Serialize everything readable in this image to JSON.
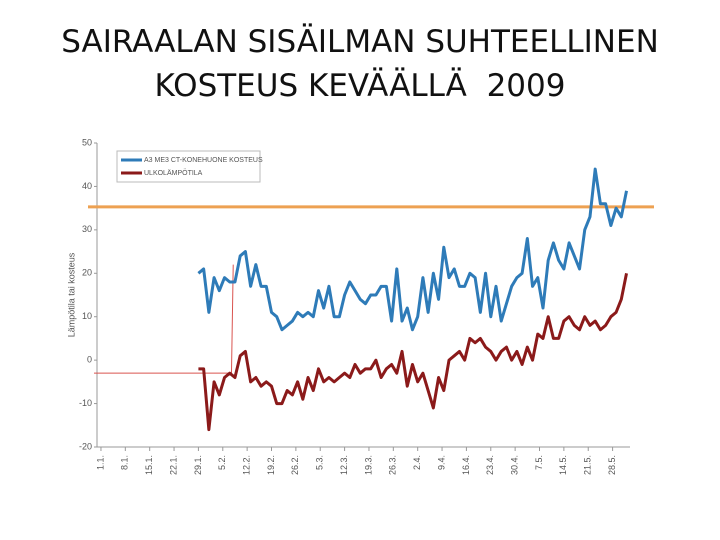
{
  "chart_data": {
    "type": "line",
    "title": [
      "SAIRAALAN SISÄILMAN SUHTEELLINEN",
      "KOSTEUS KEVÄÄLLÄ  2009"
    ],
    "ylabel": "Lämpötila tai kosteus",
    "xlim": [
      -1,
      153
    ],
    "ylim": [
      -20,
      50
    ],
    "yticks": [
      -20,
      -10,
      0,
      10,
      20,
      30,
      40,
      50
    ],
    "xticks": [
      {
        "value": 1,
        "label": "1.1."
      },
      {
        "value": 8,
        "label": "8.1."
      },
      {
        "value": 15,
        "label": "15.1."
      },
      {
        "value": 22,
        "label": "22.1."
      },
      {
        "value": 29,
        "label": "29.1."
      },
      {
        "value": 36,
        "label": "5.2."
      },
      {
        "value": 43,
        "label": "12.2."
      },
      {
        "value": 50,
        "label": "19.2."
      },
      {
        "value": 57,
        "label": "26.2."
      },
      {
        "value": 64,
        "label": "5.3."
      },
      {
        "value": 71,
        "label": "12.3."
      },
      {
        "value": 78,
        "label": "19.3."
      },
      {
        "value": 85,
        "label": "26.3."
      },
      {
        "value": 92,
        "label": "2.4."
      },
      {
        "value": 99,
        "label": "9.4."
      },
      {
        "value": 106,
        "label": "16.4."
      },
      {
        "value": 113,
        "label": "23.4."
      },
      {
        "value": 120,
        "label": "30.4."
      },
      {
        "value": 127,
        "label": "7.5."
      },
      {
        "value": 134,
        "label": "14.5."
      },
      {
        "value": 141,
        "label": "21.5."
      },
      {
        "value": 148,
        "label": "28.5."
      }
    ],
    "x": [
      29,
      30.5,
      32,
      33.5,
      35,
      36.5,
      38,
      39.5,
      41,
      42.5,
      44,
      45.5,
      47,
      48.5,
      50,
      51.5,
      53,
      54.5,
      56,
      57.5,
      59,
      60.5,
      62,
      63.5,
      65,
      66.5,
      68,
      69.5,
      71,
      72.5,
      74,
      75.5,
      77,
      78.5,
      80,
      81.5,
      83,
      84.5,
      86,
      87.5,
      89,
      90.5,
      92,
      93.5,
      95,
      96.5,
      98,
      99.5,
      101,
      102.5,
      104,
      105.5,
      107,
      108.5,
      110,
      111.5,
      113,
      114.5,
      116,
      117.5,
      119,
      120.5,
      122,
      123.5,
      125,
      126.5,
      128,
      129.5,
      131,
      132.5,
      134,
      135.5,
      137,
      138.5,
      140,
      141.5,
      143,
      144.5,
      146,
      147.5,
      149,
      150.5,
      152
    ],
    "series": [
      {
        "name": "A3 ME3 CT-KONEHUONE KOSTEUS",
        "color": "#2e7bb8",
        "values": [
          20,
          21,
          11,
          19,
          16,
          19,
          18,
          18,
          24,
          25,
          17,
          22,
          17,
          17,
          11,
          10,
          7,
          8,
          9,
          11,
          10,
          11,
          10,
          16,
          12,
          17,
          10,
          10,
          15,
          18,
          16,
          14,
          13,
          15,
          15,
          17,
          17,
          9,
          21,
          9,
          12,
          7,
          10,
          19,
          11,
          20,
          14,
          26,
          19,
          21,
          17,
          17,
          20,
          19,
          11,
          20,
          10,
          17,
          9,
          13,
          17,
          19,
          20,
          28,
          17,
          19,
          12,
          23,
          27,
          23,
          21,
          27,
          24,
          21,
          30,
          33,
          44,
          36,
          36,
          31,
          35,
          33,
          39
        ]
      },
      {
        "name": "ULKOLÄMPÖTILA",
        "color": "#8b1a1a",
        "values": [
          -2,
          -2,
          -16,
          -5,
          -8,
          -4,
          -3,
          -4,
          1,
          2,
          -5,
          -4,
          -6,
          -5,
          -6,
          -10,
          -10,
          -7,
          -8,
          -5,
          -9,
          -4,
          -7,
          -2,
          -5,
          -4,
          -5,
          -4,
          -3,
          -4,
          -1,
          -3,
          -2,
          -2,
          0,
          -4,
          -2,
          -1,
          -3,
          2,
          -6,
          -1,
          -5,
          -3,
          -7,
          -11,
          -4,
          -7,
          0,
          1,
          2,
          0,
          5,
          4,
          5,
          3,
          2,
          0,
          2,
          3,
          0,
          2,
          -1,
          3,
          0,
          6,
          5,
          10,
          5,
          5,
          9,
          10,
          8,
          7,
          10,
          8,
          9,
          7,
          8,
          10,
          11,
          14,
          20
        ]
      }
    ],
    "reference_line": {
      "value": 35.3,
      "color": "#eda152"
    },
    "reference_path": {
      "x": [
        -1,
        38.5,
        39
      ],
      "y": [
        -3,
        -3,
        22
      ],
      "color": "#d9534f"
    }
  }
}
